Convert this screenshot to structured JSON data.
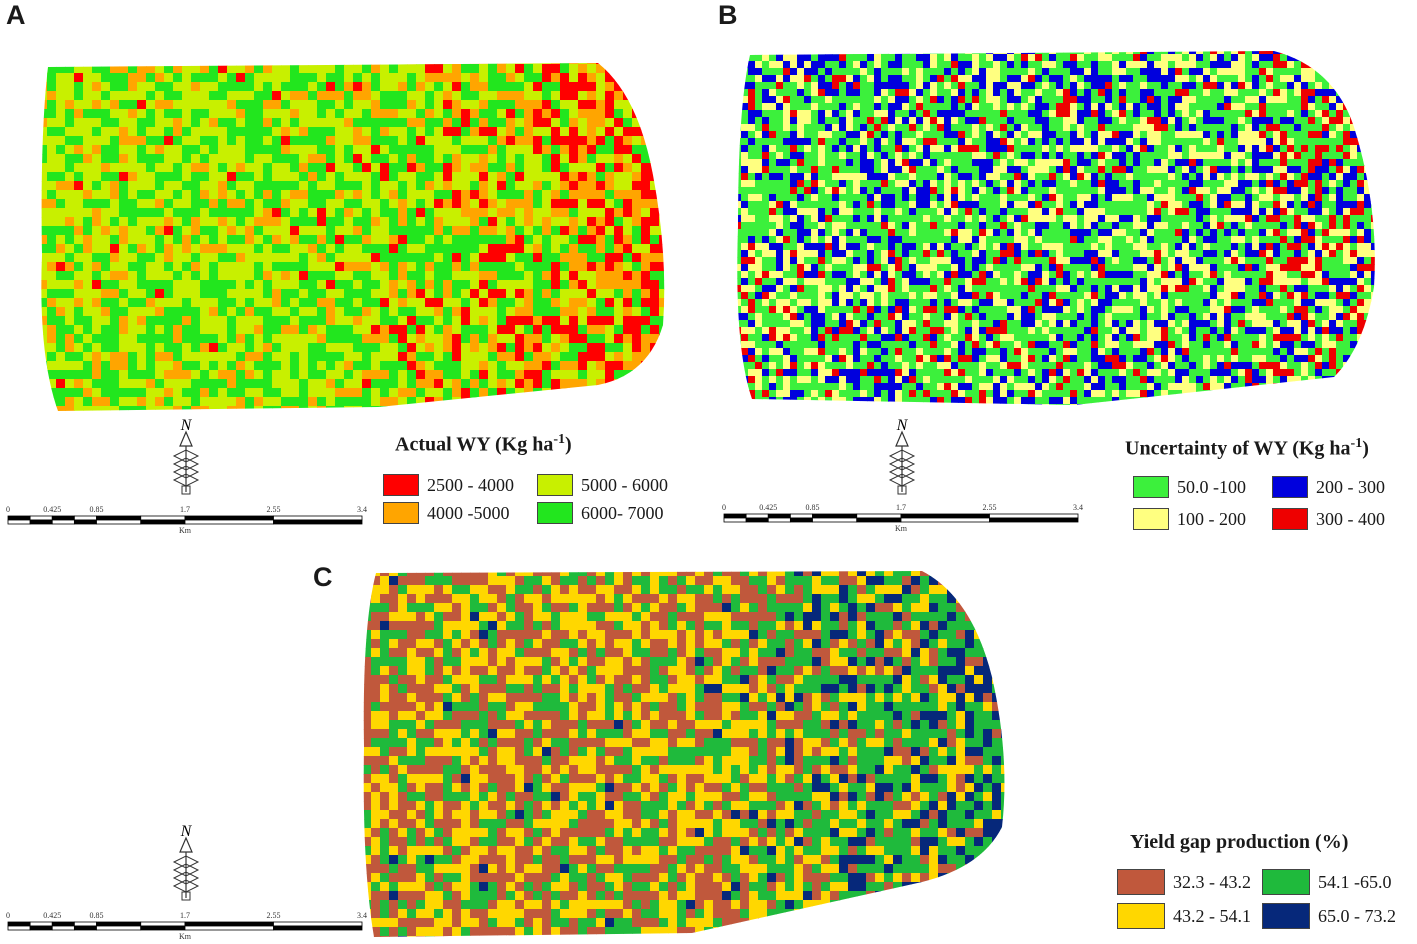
{
  "panels": [
    {
      "letter": "A",
      "legend": {
        "title_main": "Actual WY (Kg ha",
        "title_sup": "-1",
        "title_end": ")",
        "items": [
          {
            "label": "2500 - 4000",
            "color": "#ff0000"
          },
          {
            "label": "5000 - 6000",
            "color": "#c8f000"
          },
          {
            "label": "4000 -5000",
            "color": "#ffa500"
          },
          {
            "label": "6000- 7000",
            "color": "#22e61e"
          }
        ]
      }
    },
    {
      "letter": "B",
      "legend": {
        "title_main": "Uncertainty of WY (Kg ha",
        "title_sup": "-1",
        "title_end": ")",
        "items": [
          {
            "label": "50.0 -100",
            "color": "#3cf03c"
          },
          {
            "label": "200 - 300",
            "color": "#0000dd"
          },
          {
            "label": "100 - 200",
            "color": "#ffff80"
          },
          {
            "label": "300 - 400",
            "color": "#ee0000"
          }
        ]
      }
    },
    {
      "letter": "C",
      "legend": {
        "title_main": "Yield gap production (%)",
        "title_sup": "",
        "title_end": "",
        "items": [
          {
            "label": "32.3 - 43.2",
            "color": "#c0583c"
          },
          {
            "label": "54.1 -65.0",
            "color": "#1fba3c"
          },
          {
            "label": "43.2 - 54.1",
            "color": "#ffd700"
          },
          {
            "label": "65.0 - 73.2",
            "color": "#06287a"
          }
        ]
      }
    }
  ],
  "north_label": "N",
  "scale": {
    "ticks": [
      "0",
      "0.425",
      "0.85",
      "1.7",
      "2.55",
      "3.4"
    ],
    "unit": "Km"
  }
}
